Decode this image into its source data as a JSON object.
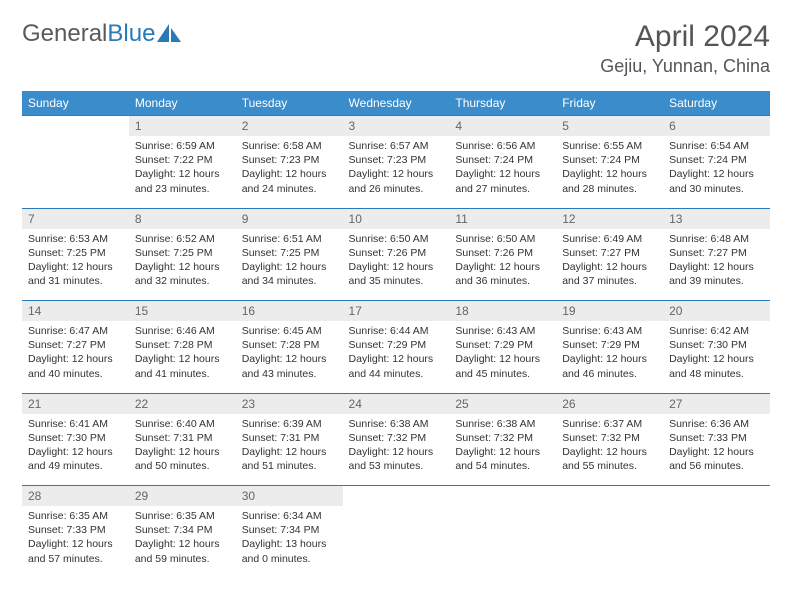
{
  "logo": {
    "text_gray": "General",
    "text_blue": "Blue"
  },
  "title": "April 2024",
  "location": "Gejiu, Yunnan, China",
  "colors": {
    "header_bg": "#3b8ccb",
    "daynum_bg": "#ececec",
    "rule": "#2a7ab8",
    "text": "#333333",
    "title_text": "#555555"
  },
  "weekdays": [
    "Sunday",
    "Monday",
    "Tuesday",
    "Wednesday",
    "Thursday",
    "Friday",
    "Saturday"
  ],
  "weeks": [
    [
      null,
      {
        "n": "1",
        "sunrise": "6:59 AM",
        "sunset": "7:22 PM",
        "daylight": "12 hours and 23 minutes."
      },
      {
        "n": "2",
        "sunrise": "6:58 AM",
        "sunset": "7:23 PM",
        "daylight": "12 hours and 24 minutes."
      },
      {
        "n": "3",
        "sunrise": "6:57 AM",
        "sunset": "7:23 PM",
        "daylight": "12 hours and 26 minutes."
      },
      {
        "n": "4",
        "sunrise": "6:56 AM",
        "sunset": "7:24 PM",
        "daylight": "12 hours and 27 minutes."
      },
      {
        "n": "5",
        "sunrise": "6:55 AM",
        "sunset": "7:24 PM",
        "daylight": "12 hours and 28 minutes."
      },
      {
        "n": "6",
        "sunrise": "6:54 AM",
        "sunset": "7:24 PM",
        "daylight": "12 hours and 30 minutes."
      }
    ],
    [
      {
        "n": "7",
        "sunrise": "6:53 AM",
        "sunset": "7:25 PM",
        "daylight": "12 hours and 31 minutes."
      },
      {
        "n": "8",
        "sunrise": "6:52 AM",
        "sunset": "7:25 PM",
        "daylight": "12 hours and 32 minutes."
      },
      {
        "n": "9",
        "sunrise": "6:51 AM",
        "sunset": "7:25 PM",
        "daylight": "12 hours and 34 minutes."
      },
      {
        "n": "10",
        "sunrise": "6:50 AM",
        "sunset": "7:26 PM",
        "daylight": "12 hours and 35 minutes."
      },
      {
        "n": "11",
        "sunrise": "6:50 AM",
        "sunset": "7:26 PM",
        "daylight": "12 hours and 36 minutes."
      },
      {
        "n": "12",
        "sunrise": "6:49 AM",
        "sunset": "7:27 PM",
        "daylight": "12 hours and 37 minutes."
      },
      {
        "n": "13",
        "sunrise": "6:48 AM",
        "sunset": "7:27 PM",
        "daylight": "12 hours and 39 minutes."
      }
    ],
    [
      {
        "n": "14",
        "sunrise": "6:47 AM",
        "sunset": "7:27 PM",
        "daylight": "12 hours and 40 minutes."
      },
      {
        "n": "15",
        "sunrise": "6:46 AM",
        "sunset": "7:28 PM",
        "daylight": "12 hours and 41 minutes."
      },
      {
        "n": "16",
        "sunrise": "6:45 AM",
        "sunset": "7:28 PM",
        "daylight": "12 hours and 43 minutes."
      },
      {
        "n": "17",
        "sunrise": "6:44 AM",
        "sunset": "7:29 PM",
        "daylight": "12 hours and 44 minutes."
      },
      {
        "n": "18",
        "sunrise": "6:43 AM",
        "sunset": "7:29 PM",
        "daylight": "12 hours and 45 minutes."
      },
      {
        "n": "19",
        "sunrise": "6:43 AM",
        "sunset": "7:29 PM",
        "daylight": "12 hours and 46 minutes."
      },
      {
        "n": "20",
        "sunrise": "6:42 AM",
        "sunset": "7:30 PM",
        "daylight": "12 hours and 48 minutes."
      }
    ],
    [
      {
        "n": "21",
        "sunrise": "6:41 AM",
        "sunset": "7:30 PM",
        "daylight": "12 hours and 49 minutes."
      },
      {
        "n": "22",
        "sunrise": "6:40 AM",
        "sunset": "7:31 PM",
        "daylight": "12 hours and 50 minutes."
      },
      {
        "n": "23",
        "sunrise": "6:39 AM",
        "sunset": "7:31 PM",
        "daylight": "12 hours and 51 minutes."
      },
      {
        "n": "24",
        "sunrise": "6:38 AM",
        "sunset": "7:32 PM",
        "daylight": "12 hours and 53 minutes."
      },
      {
        "n": "25",
        "sunrise": "6:38 AM",
        "sunset": "7:32 PM",
        "daylight": "12 hours and 54 minutes."
      },
      {
        "n": "26",
        "sunrise": "6:37 AM",
        "sunset": "7:32 PM",
        "daylight": "12 hours and 55 minutes."
      },
      {
        "n": "27",
        "sunrise": "6:36 AM",
        "sunset": "7:33 PM",
        "daylight": "12 hours and 56 minutes."
      }
    ],
    [
      {
        "n": "28",
        "sunrise": "6:35 AM",
        "sunset": "7:33 PM",
        "daylight": "12 hours and 57 minutes."
      },
      {
        "n": "29",
        "sunrise": "6:35 AM",
        "sunset": "7:34 PM",
        "daylight": "12 hours and 59 minutes."
      },
      {
        "n": "30",
        "sunrise": "6:34 AM",
        "sunset": "7:34 PM",
        "daylight": "13 hours and 0 minutes."
      },
      null,
      null,
      null,
      null
    ]
  ],
  "labels": {
    "sunrise": "Sunrise:",
    "sunset": "Sunset:",
    "daylight": "Daylight:"
  }
}
